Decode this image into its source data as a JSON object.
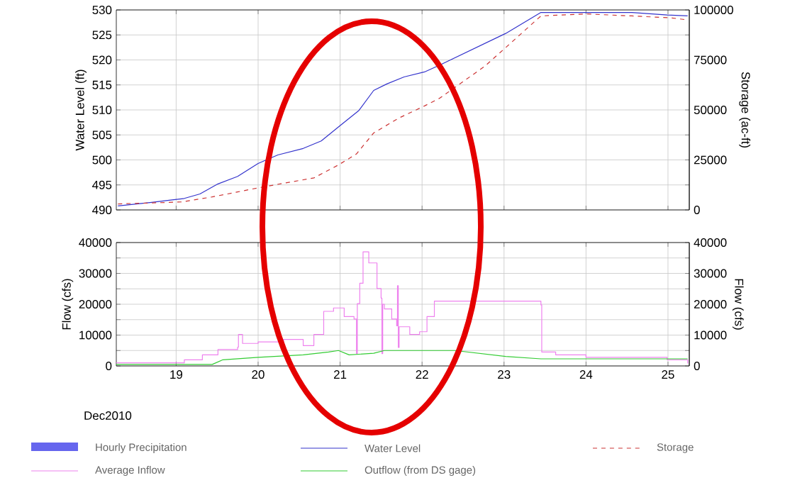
{
  "chart_data": [
    {
      "type": "line",
      "ylabel": "Water Level (ft)",
      "y2label": "Storage (ac-ft)",
      "xlim": [
        18.27,
        25.26
      ],
      "xticks": [
        19,
        20,
        21,
        22,
        23,
        24,
        25
      ],
      "ylim": [
        490,
        530
      ],
      "yticks": [
        490,
        495,
        500,
        505,
        510,
        515,
        520,
        525,
        530
      ],
      "y2lim": [
        0,
        100000
      ],
      "y2ticks": [
        0,
        {
          "value": 12500,
          "label": null
        },
        25000,
        {
          "value": 37500,
          "label": null
        },
        50000,
        {
          "value": 62500,
          "label": null
        },
        75000,
        {
          "value": 87500,
          "label": null
        },
        100000
      ],
      "grid": true,
      "legend": "bottom",
      "tick_labels": "y",
      "series": [
        {
          "name": "Water Level",
          "color": "#3333cc",
          "x": [
            18.29,
            18.7,
            18.95,
            19.1,
            19.29,
            19.51,
            19.75,
            20.0,
            20.24,
            20.55,
            20.77,
            20.98,
            21.23,
            21.41,
            21.57,
            21.78,
            22.03,
            22.22,
            23.02,
            23.45,
            24.56,
            24.99,
            25.24
          ],
          "values": [
            490.8,
            491.5,
            492.0,
            492.3,
            493.2,
            495.2,
            496.7,
            499.3,
            501.0,
            502.3,
            503.8,
            506.6,
            509.9,
            513.9,
            515.2,
            516.6,
            517.6,
            519.0,
            525.3,
            529.5,
            529.5,
            529.0,
            528.8
          ]
        },
        {
          "name": "Storage",
          "color": "#cc3333",
          "line_style": "dashed",
          "axis": "y2",
          "x": [
            18.29,
            18.7,
            19.07,
            19.44,
            19.75,
            20.06,
            20.68,
            20.98,
            21.2,
            21.41,
            21.72,
            22.03,
            22.22,
            22.77,
            23.45,
            24.0,
            24.56,
            25.05,
            25.24
          ],
          "values": [
            3000,
            3500,
            4000,
            6500,
            9000,
            11500,
            16000,
            22500,
            28000,
            38500,
            46000,
            52000,
            56000,
            72000,
            97000,
            98000,
            97000,
            96000,
            95000
          ]
        }
      ]
    },
    {
      "type": "step",
      "ylabel": "Flow (cfs)",
      "y2label": "Flow (cfs)",
      "xlim": [
        18.27,
        25.26
      ],
      "xticks": [
        19,
        20,
        21,
        22,
        23,
        24,
        25
      ],
      "ylim": [
        0,
        40000
      ],
      "yticks": [
        0,
        {
          "value": 5000,
          "label": null
        },
        10000,
        {
          "value": 15000,
          "label": null
        },
        20000,
        {
          "value": 25000,
          "label": null
        },
        30000,
        {
          "value": 35000,
          "label": null
        },
        40000
      ],
      "y2lim": [
        0,
        40000
      ],
      "y2ticks": [
        0,
        {
          "value": 5000,
          "label": null
        },
        10000,
        {
          "value": 15000,
          "label": null
        },
        20000,
        {
          "value": 25000,
          "label": null
        },
        30000,
        {
          "value": 35000,
          "label": null
        },
        40000
      ],
      "grid": true,
      "legend": "bottom",
      "annotations": [
        "Dec2010"
      ],
      "series": [
        {
          "name": "Hourly Precipitation",
          "color": "#6666ee",
          "type": "bar"
        },
        {
          "name": "Average Inflow",
          "color": "#ee82ee",
          "x": [
            18.27,
            18.95,
            19.1,
            19.32,
            19.51,
            19.75,
            19.76,
            19.81,
            20.0,
            20.31,
            20.55,
            20.68,
            20.8,
            20.92,
            21.05,
            21.17,
            21.19,
            21.2,
            21.21,
            21.24,
            21.28,
            21.35,
            21.45,
            21.5,
            21.51,
            21.52,
            21.54,
            21.63,
            21.69,
            21.7,
            21.71,
            21.72,
            21.85,
            21.97,
            22.06,
            22.15,
            23.45,
            23.46,
            23.63,
            24.0,
            24.99,
            25.24
          ],
          "values": [
            1000,
            1000,
            2000,
            3600,
            5300,
            6100,
            10200,
            7300,
            7800,
            8600,
            6600,
            10200,
            17700,
            18800,
            16000,
            15200,
            15200,
            4000,
            20200,
            26800,
            37000,
            33400,
            25100,
            22000,
            4000,
            20000,
            18500,
            15200,
            13000,
            26000,
            6000,
            12700,
            10200,
            11100,
            16000,
            21000,
            19800,
            4500,
            3600,
            2800,
            2000,
            800
          ]
        },
        {
          "name": "Outflow (from DS gage)",
          "color": "#33cc33",
          "type": "line",
          "x": [
            18.27,
            19.44,
            19.57,
            20.0,
            20.55,
            20.86,
            20.98,
            21.11,
            21.41,
            21.54,
            22.4,
            23.02,
            23.45,
            25.24
          ],
          "values": [
            500,
            500,
            2000,
            2800,
            3600,
            4500,
            5000,
            3600,
            4100,
            5000,
            5000,
            3100,
            2300,
            2300
          ]
        }
      ]
    }
  ]
}
